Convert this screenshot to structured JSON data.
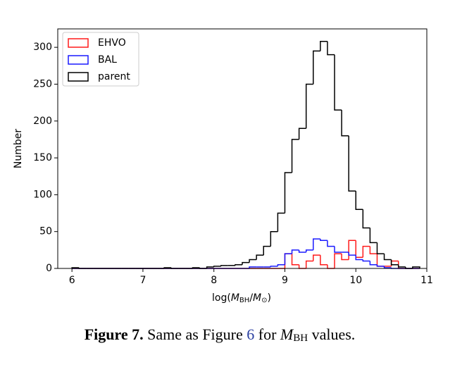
{
  "chart_data": {
    "type": "histogram",
    "xlabel": [
      "log(",
      "M",
      "BH",
      "/",
      "M",
      "⊙",
      ")"
    ],
    "ylabel": "Number",
    "bins": [
      6.0,
      6.1,
      6.2,
      6.3,
      6.4,
      6.5,
      6.6,
      6.7,
      6.8,
      6.9,
      7.0,
      7.1,
      7.2,
      7.3,
      7.4,
      7.5,
      7.6,
      7.7,
      7.8,
      7.9,
      8.0,
      8.1,
      8.2,
      8.3,
      8.4,
      8.5,
      8.6,
      8.7,
      8.8,
      8.9,
      9.0,
      9.1,
      9.2,
      9.3,
      9.4,
      9.5,
      9.6,
      9.7,
      9.8,
      9.9,
      10.0,
      10.1,
      10.2,
      10.3,
      10.4,
      10.5,
      10.6,
      10.7,
      10.8,
      10.9
    ],
    "series": [
      {
        "name": "EHVO",
        "color": "#ff1a1a",
        "values": [
          0,
          0,
          0,
          0,
          0,
          0,
          0,
          0,
          0,
          0,
          0,
          0,
          0,
          0,
          0,
          0,
          0,
          0,
          0,
          0,
          0,
          0,
          0,
          0,
          0,
          0,
          0,
          0,
          0,
          0,
          20,
          5,
          0,
          10,
          18,
          5,
          0,
          20,
          12,
          38,
          15,
          30,
          20,
          3,
          3,
          10,
          0,
          0,
          0
        ]
      },
      {
        "name": "BAL",
        "color": "#1a1aff",
        "values": [
          0,
          0,
          0,
          0,
          0,
          0,
          0,
          0,
          0,
          0,
          0,
          0,
          0,
          0,
          0,
          0,
          0,
          0,
          0,
          0,
          0,
          0,
          0,
          0,
          0,
          2,
          2,
          2,
          3,
          5,
          20,
          25,
          22,
          25,
          40,
          38,
          30,
          22,
          22,
          18,
          12,
          10,
          5,
          3,
          1,
          0,
          0,
          0,
          0
        ]
      },
      {
        "name": "parent",
        "color": "#000000",
        "values": [
          1,
          0,
          0,
          0,
          0,
          0,
          0,
          0,
          0,
          0,
          0,
          0,
          0,
          1,
          0,
          0,
          0,
          1,
          0,
          2,
          3,
          4,
          4,
          5,
          8,
          12,
          18,
          30,
          50,
          75,
          130,
          175,
          190,
          250,
          295,
          308,
          290,
          215,
          180,
          105,
          80,
          55,
          35,
          20,
          12,
          5,
          2,
          0,
          2
        ]
      }
    ],
    "xlim": [
      5.8,
      11.0
    ],
    "ylim": [
      0,
      325
    ],
    "xticks": [
      6,
      7,
      8,
      9,
      10,
      11
    ],
    "yticks": [
      0,
      50,
      100,
      150,
      200,
      250,
      300
    ],
    "legend": "upper left"
  },
  "caption": {
    "label": "Figure 7.",
    "parts": [
      "Same as Figure ",
      "6",
      " for ",
      "M",
      "BH",
      " values."
    ]
  }
}
